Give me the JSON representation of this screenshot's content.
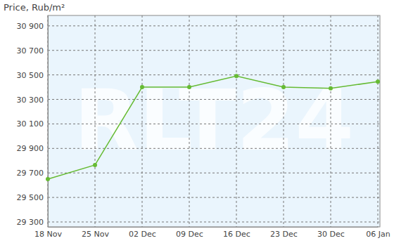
{
  "chart_data": {
    "type": "line",
    "title": "Price, Rub/m²",
    "annotations": [
      "RLT24"
    ],
    "categories": [
      "18 Nov",
      "25 Nov",
      "02 Dec",
      "09 Dec",
      "16 Dec",
      "23 Dec",
      "30 Dec",
      "06 Jan"
    ],
    "values": [
      29650,
      29765,
      30400,
      30400,
      30490,
      30400,
      30390,
      30445
    ],
    "color": "#66bb33",
    "marker": "circle",
    "line_style": "solid",
    "ylim": [
      29260,
      30985
    ],
    "yticks": [
      {
        "value": 29300,
        "label": "29 300"
      },
      {
        "value": 29500,
        "label": "29 500"
      },
      {
        "value": 29700,
        "label": "29 700"
      },
      {
        "value": 29900,
        "label": "29 900"
      },
      {
        "value": 30100,
        "label": "30 100"
      },
      {
        "value": 30300,
        "label": "30 300"
      },
      {
        "value": 30500,
        "label": "30 500"
      },
      {
        "value": 30700,
        "label": "30 700"
      },
      {
        "value": 30900,
        "label": "30 900"
      }
    ],
    "grid": true
  }
}
